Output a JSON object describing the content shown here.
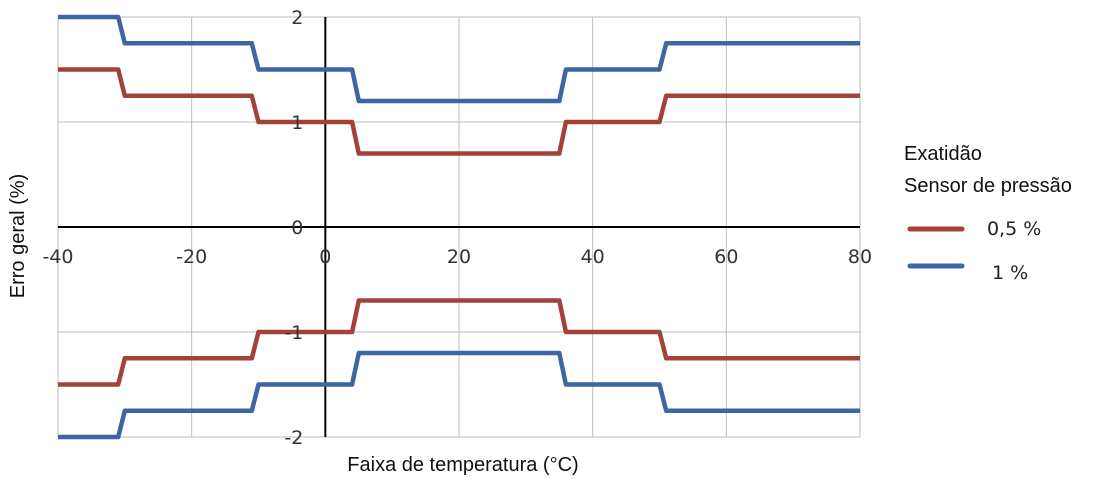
{
  "chart_data": {
    "type": "line",
    "xlabel": "Faixa de temperatura (°C)",
    "ylabel": "Erro geral (%)",
    "xlim": [
      -40,
      80
    ],
    "ylim": [
      -2,
      2
    ],
    "x_ticks": [
      -40,
      -20,
      0,
      20,
      40,
      60,
      80
    ],
    "y_ticks": [
      2,
      1,
      0,
      -1,
      -2
    ],
    "grid": true,
    "legend": {
      "title_lines": [
        "Exatidão",
        "Sensor de pressão"
      ],
      "position": "right"
    },
    "series": [
      {
        "name": "0,5 %",
        "color": "#a3413b",
        "upper": {
          "x": [
            -40,
            -31,
            -30,
            -11,
            -10,
            4,
            5,
            35,
            36,
            50,
            51,
            80
          ],
          "y": [
            1.5,
            1.5,
            1.25,
            1.25,
            1.0,
            1.0,
            0.7,
            0.7,
            1.0,
            1.0,
            1.25,
            1.25
          ]
        },
        "lower": {
          "x": [
            -40,
            -31,
            -30,
            -11,
            -10,
            4,
            5,
            35,
            36,
            50,
            51,
            80
          ],
          "y": [
            -1.5,
            -1.5,
            -1.25,
            -1.25,
            -1.0,
            -1.0,
            -0.7,
            -0.7,
            -1.0,
            -1.0,
            -1.25,
            -1.25
          ]
        }
      },
      {
        "name": "1 %",
        "color": "#3d66a3",
        "upper": {
          "x": [
            -40,
            -31,
            -30,
            -11,
            -10,
            4,
            5,
            35,
            36,
            50,
            51,
            80
          ],
          "y": [
            2.0,
            2.0,
            1.75,
            1.75,
            1.5,
            1.5,
            1.2,
            1.2,
            1.5,
            1.5,
            1.75,
            1.75
          ]
        },
        "lower": {
          "x": [
            -40,
            -31,
            -30,
            -11,
            -10,
            4,
            5,
            35,
            36,
            50,
            51,
            80
          ],
          "y": [
            -2.0,
            -2.0,
            -1.75,
            -1.75,
            -1.5,
            -1.5,
            -1.2,
            -1.2,
            -1.5,
            -1.5,
            -1.75,
            -1.75
          ]
        }
      }
    ]
  }
}
